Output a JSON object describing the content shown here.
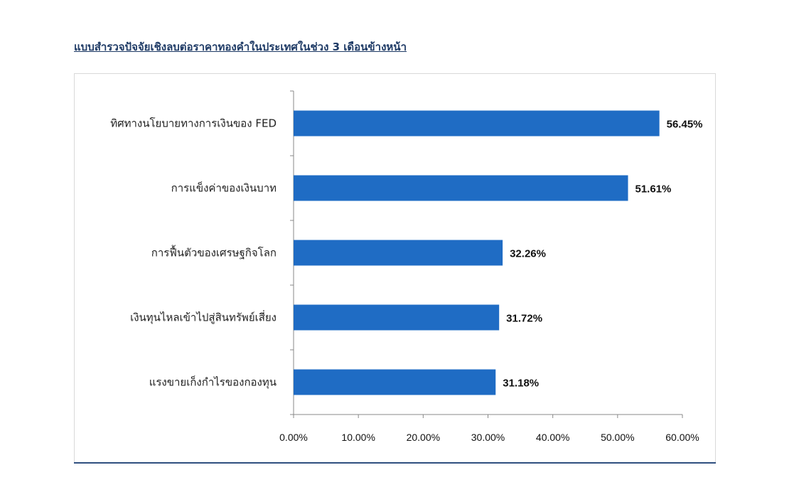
{
  "page": {
    "heading": "แบบสำรวจปัจจัยเชิงลบต่อราคาทองคำในประเทศในช่วง 3 เดือนข้างหน้า"
  },
  "colors": {
    "bar": "#1f6cc4",
    "axis": "#888888",
    "heading": "#1f3b66",
    "rule": "#2f4f7f"
  },
  "chart_data": {
    "type": "bar",
    "orientation": "horizontal",
    "title": "",
    "xlabel": "",
    "ylabel": "",
    "categories": [
      "ทิศทางนโยบายทางการเงินของ FED",
      "การแข็งค่าของเงินบาท",
      "การฟื้นตัวของเศรษฐกิจโลก",
      "เงินทุนไหลเข้าไปสู่สินทรัพย์เสี่ยง",
      "แรงขายเก็งกำไรของกองทุน"
    ],
    "values": [
      56.45,
      51.61,
      32.26,
      31.72,
      31.18
    ],
    "value_labels": [
      "56.45%",
      "51.61%",
      "32.26%",
      "31.72%",
      "31.18%"
    ],
    "xlim": [
      0,
      60
    ],
    "x_ticks": [
      0,
      10,
      20,
      30,
      40,
      50,
      60
    ],
    "x_tick_labels": [
      "0.00%",
      "10.00%",
      "20.00%",
      "30.00%",
      "40.00%",
      "50.00%",
      "60.00%"
    ],
    "grid": false,
    "legend": "none"
  }
}
